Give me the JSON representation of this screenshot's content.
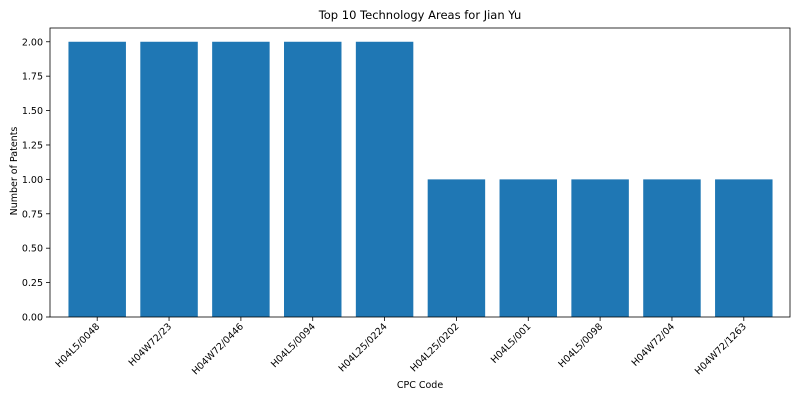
{
  "chart_data": {
    "type": "bar",
    "title": "Top 10 Technology Areas for Jian Yu",
    "xlabel": "CPC Code",
    "ylabel": "Number of Patents",
    "categories": [
      "H04L5/0048",
      "H04W72/23",
      "H04W72/0446",
      "H04L5/0094",
      "H04L25/0224",
      "H04L25/0202",
      "H04L5/001",
      "H04L5/0098",
      "H04W72/04",
      "H04W72/1263"
    ],
    "values": [
      2,
      2,
      2,
      2,
      2,
      1,
      1,
      1,
      1,
      1
    ],
    "ylim": [
      0,
      2.1
    ],
    "yticks": [
      "0.00",
      "0.25",
      "0.50",
      "0.75",
      "1.00",
      "1.25",
      "1.50",
      "1.75",
      "2.00"
    ],
    "bar_color": "#1f77b4",
    "grid": false,
    "legend": false
  }
}
